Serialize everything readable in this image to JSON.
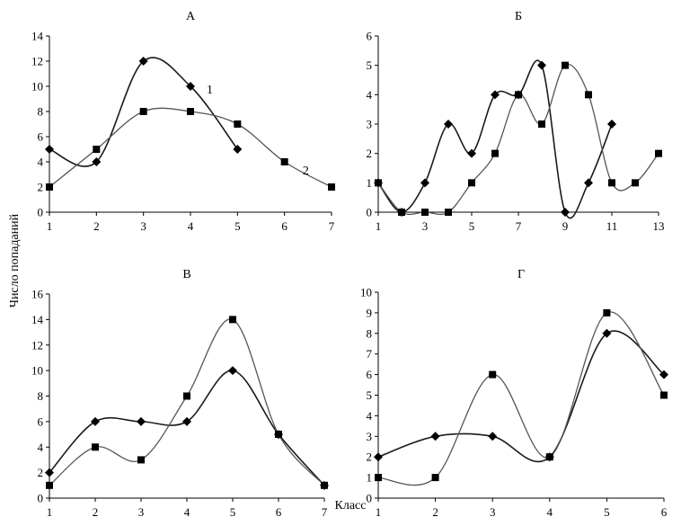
{
  "figure": {
    "ylabel": "Число попаданий",
    "xlabel": "Класс"
  },
  "chart_data": [
    {
      "type": "line",
      "title": "А",
      "xlim": [
        1,
        7
      ],
      "ylim": [
        0,
        14
      ],
      "xticks": [
        1,
        2,
        3,
        4,
        5,
        6,
        7
      ],
      "yticks": [
        0,
        2,
        4,
        6,
        8,
        10,
        12,
        14
      ],
      "series": [
        {
          "marker": "diamond",
          "label": "1",
          "x": [
            1,
            2,
            3,
            4,
            5
          ],
          "values": [
            5,
            4,
            12,
            10,
            5
          ]
        },
        {
          "marker": "square",
          "label": "2",
          "x": [
            1,
            2,
            3,
            4,
            5,
            6,
            7
          ],
          "values": [
            2,
            5,
            8,
            8,
            7,
            4,
            2
          ]
        }
      ]
    },
    {
      "type": "line",
      "title": "Б",
      "xlim": [
        1,
        13
      ],
      "ylim": [
        0,
        6
      ],
      "xticks": [
        1,
        3,
        5,
        7,
        9,
        11,
        13
      ],
      "yticks": [
        0,
        1,
        2,
        3,
        4,
        5,
        6
      ],
      "series": [
        {
          "marker": "diamond",
          "x": [
            1,
            2,
            3,
            4,
            5,
            6,
            7,
            8,
            9,
            10,
            11
          ],
          "values": [
            1,
            0,
            1,
            3,
            2,
            4,
            4,
            5,
            0,
            1,
            3
          ]
        },
        {
          "marker": "square",
          "x": [
            1,
            2,
            3,
            4,
            5,
            6,
            7,
            8,
            9,
            10,
            11,
            12,
            13
          ],
          "values": [
            1,
            0,
            0,
            0,
            1,
            2,
            4,
            3,
            5,
            4,
            1,
            1,
            2
          ]
        }
      ]
    },
    {
      "type": "line",
      "title": "В",
      "xlim": [
        1,
        7
      ],
      "ylim": [
        0,
        16
      ],
      "xticks": [
        1,
        2,
        3,
        4,
        5,
        6,
        7
      ],
      "yticks": [
        0,
        2,
        4,
        6,
        8,
        10,
        12,
        14,
        16
      ],
      "series": [
        {
          "marker": "diamond",
          "x": [
            1,
            2,
            3,
            4,
            5,
            6,
            7
          ],
          "values": [
            2,
            6,
            6,
            6,
            10,
            5,
            1
          ]
        },
        {
          "marker": "square",
          "x": [
            1,
            2,
            3,
            4,
            5,
            6,
            7
          ],
          "values": [
            1,
            4,
            3,
            8,
            14,
            5,
            1
          ]
        }
      ]
    },
    {
      "type": "line",
      "title": "Г",
      "xlim": [
        1,
        6
      ],
      "ylim": [
        0,
        10
      ],
      "xticks": [
        1,
        2,
        3,
        4,
        5,
        6
      ],
      "yticks": [
        0,
        1,
        2,
        3,
        4,
        5,
        6,
        7,
        8,
        9,
        10
      ],
      "series": [
        {
          "marker": "diamond",
          "x": [
            1,
            2,
            3,
            4,
            5,
            6
          ],
          "values": [
            2,
            3,
            3,
            2,
            8,
            6
          ]
        },
        {
          "marker": "square",
          "x": [
            1,
            2,
            3,
            4,
            5,
            6
          ],
          "values": [
            1,
            1,
            6,
            2,
            9,
            5
          ]
        }
      ]
    }
  ]
}
